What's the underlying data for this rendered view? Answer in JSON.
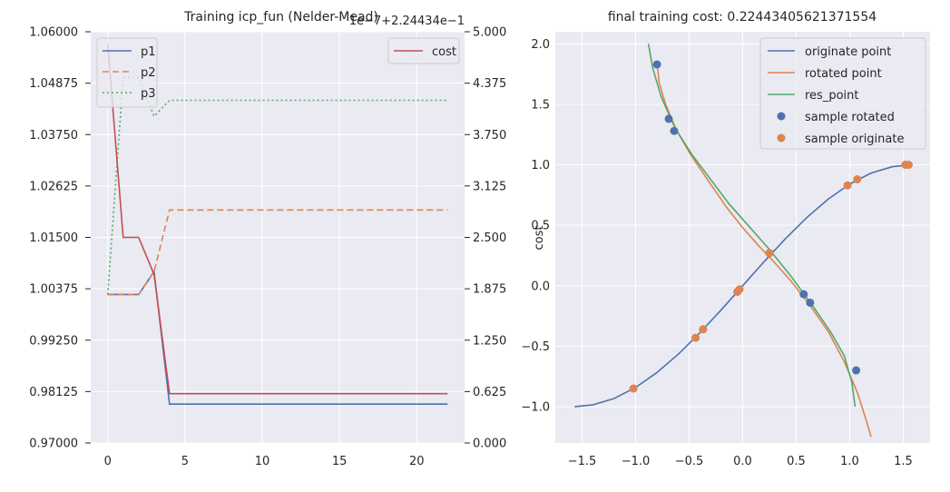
{
  "colors": {
    "axes_bg": "#eaeaf2",
    "grid": "#ffffff",
    "blue": "#4c72b0",
    "orange": "#dd8452",
    "green": "#55a868",
    "red": "#c44e52",
    "text": "#262626"
  },
  "chart_data": [
    {
      "type": "line",
      "title": "Training icp_fun (Nelder-Mead)",
      "offset_text": "1e−7+2.24434e−1",
      "xlabel": "",
      "ylabel": "",
      "xlim": [
        -1.1,
        23.1
      ],
      "ylim": [
        0.97,
        1.06
      ],
      "x_ticks": [
        0,
        5,
        10,
        15,
        20
      ],
      "y_ticks": [
        "0.97000",
        "0.98125",
        "0.99250",
        "1.00375",
        "1.01500",
        "1.02625",
        "1.03750",
        "1.04875",
        "1.06000"
      ],
      "legend": "upper left",
      "x": [
        0,
        1,
        2,
        3,
        4,
        5,
        6,
        7,
        8,
        9,
        10,
        11,
        12,
        13,
        14,
        15,
        16,
        17,
        18,
        19,
        20,
        21,
        22
      ],
      "series": [
        {
          "name": "p1",
          "style": "solid",
          "color": "#4c72b0",
          "values": [
            1.0025,
            1.0025,
            1.0025,
            1.0075,
            0.9785,
            0.9785,
            0.9785,
            0.9785,
            0.9785,
            0.9785,
            0.9785,
            0.9785,
            0.9785,
            0.9785,
            0.9785,
            0.9785,
            0.9785,
            0.9785,
            0.9785,
            0.9785,
            0.9785,
            0.9785,
            0.9785
          ]
        },
        {
          "name": "p2",
          "style": "dashed",
          "color": "#dd8452",
          "values": [
            1.0025,
            1.0025,
            1.0025,
            1.0075,
            1.021,
            1.021,
            1.021,
            1.021,
            1.021,
            1.021,
            1.021,
            1.021,
            1.021,
            1.021,
            1.021,
            1.021,
            1.021,
            1.021,
            1.021,
            1.021,
            1.021,
            1.021,
            1.021
          ]
        },
        {
          "name": "p3",
          "style": "dotted",
          "color": "#55a868",
          "values": [
            1.0025,
            1.05,
            1.05,
            1.0415,
            1.045,
            1.045,
            1.045,
            1.045,
            1.045,
            1.045,
            1.045,
            1.045,
            1.045,
            1.045,
            1.045,
            1.045,
            1.045,
            1.045,
            1.045,
            1.045,
            1.045,
            1.045,
            1.045
          ]
        }
      ],
      "twin_axis": {
        "ylabel": "cost",
        "ylim": [
          0,
          5
        ],
        "y_ticks": [
          "0.000",
          "0.625",
          "1.250",
          "1.875",
          "2.500",
          "3.125",
          "3.750",
          "4.375",
          "5.000"
        ],
        "legend": "upper right",
        "series": [
          {
            "name": "cost",
            "style": "solid",
            "color": "#c44e52",
            "values": [
              4.85,
              2.5,
              2.5,
              2.05,
              0.6,
              0.6,
              0.6,
              0.6,
              0.6,
              0.6,
              0.6,
              0.6,
              0.6,
              0.6,
              0.6,
              0.6,
              0.6,
              0.6,
              0.6,
              0.6,
              0.6,
              0.6,
              0.6
            ]
          }
        ]
      }
    },
    {
      "type": "line",
      "title": "final training cost: 0.22443405621371554",
      "xlabel": "",
      "ylabel": "",
      "xlim": [
        -1.75,
        1.75
      ],
      "ylim": [
        -1.3,
        2.1
      ],
      "x_ticks": [
        "−1.5",
        "−1.0",
        "−0.5",
        "0.0",
        "0.5",
        "1.0",
        "1.5"
      ],
      "y_ticks": [
        "−1.0",
        "−0.5",
        "0.0",
        "0.5",
        "1.0",
        "1.5",
        "2.0"
      ],
      "legend": "upper right",
      "series": [
        {
          "name": "originate point",
          "kind": "line",
          "color": "#4c72b0",
          "points": [
            [
              -1.57,
              -1.0
            ],
            [
              -1.4,
              -0.985
            ],
            [
              -1.2,
              -0.932
            ],
            [
              -1.0,
              -0.841
            ],
            [
              -0.8,
              -0.717
            ],
            [
              -0.6,
              -0.565
            ],
            [
              -0.4,
              -0.389
            ],
            [
              -0.2,
              -0.199
            ],
            [
              0.0,
              0.0
            ],
            [
              0.2,
              0.199
            ],
            [
              0.4,
              0.389
            ],
            [
              0.6,
              0.565
            ],
            [
              0.8,
              0.717
            ],
            [
              1.0,
              0.841
            ],
            [
              1.2,
              0.932
            ],
            [
              1.4,
              0.985
            ],
            [
              1.57,
              1.0
            ]
          ]
        },
        {
          "name": "rotated point",
          "kind": "line",
          "color": "#dd8452",
          "points": [
            [
              -0.8,
              1.85
            ],
            [
              -0.78,
              1.68
            ],
            [
              -0.72,
              1.5
            ],
            [
              -0.62,
              1.29
            ],
            [
              -0.49,
              1.09
            ],
            [
              -0.33,
              0.88
            ],
            [
              -0.16,
              0.66
            ],
            [
              0.0,
              0.48
            ],
            [
              0.15,
              0.33
            ],
            [
              0.3,
              0.19
            ],
            [
              0.45,
              0.04
            ],
            [
              0.62,
              -0.15
            ],
            [
              0.8,
              -0.38
            ],
            [
              0.95,
              -0.63
            ],
            [
              1.07,
              -0.88
            ],
            [
              1.15,
              -1.1
            ],
            [
              1.2,
              -1.25
            ]
          ]
        },
        {
          "name": "res_point",
          "kind": "line",
          "color": "#55a868",
          "points": [
            [
              -0.88,
              2.0
            ],
            [
              -0.84,
              1.8
            ],
            [
              -0.76,
              1.56
            ],
            [
              -0.63,
              1.3
            ],
            [
              -0.47,
              1.08
            ],
            [
              -0.3,
              0.88
            ],
            [
              -0.13,
              0.68
            ],
            [
              0.05,
              0.5
            ],
            [
              0.25,
              0.3
            ],
            [
              0.45,
              0.08
            ],
            [
              0.65,
              -0.16
            ],
            [
              0.82,
              -0.38
            ],
            [
              0.95,
              -0.58
            ],
            [
              1.02,
              -0.8
            ],
            [
              1.05,
              -1.0
            ]
          ]
        },
        {
          "name": "sample rotated",
          "kind": "scatter",
          "color": "#4c72b0",
          "points": [
            [
              -0.8,
              1.83
            ],
            [
              -0.69,
              1.38
            ],
            [
              -0.64,
              1.28
            ],
            [
              0.25,
              0.27
            ],
            [
              0.57,
              -0.07
            ],
            [
              0.63,
              -0.14
            ],
            [
              1.06,
              -0.7
            ]
          ]
        },
        {
          "name": "sample originate",
          "kind": "scatter",
          "color": "#dd8452",
          "points": [
            [
              -1.02,
              -0.85
            ],
            [
              -0.44,
              -0.43
            ],
            [
              -0.37,
              -0.36
            ],
            [
              -0.05,
              -0.05
            ],
            [
              -0.03,
              -0.03
            ],
            [
              0.25,
              0.27
            ],
            [
              0.98,
              0.83
            ],
            [
              1.07,
              0.88
            ],
            [
              1.52,
              1.0
            ],
            [
              1.55,
              1.0
            ]
          ]
        }
      ]
    }
  ]
}
